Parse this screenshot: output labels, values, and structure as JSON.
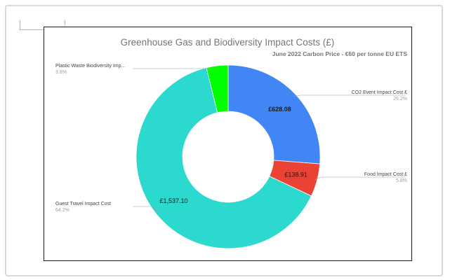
{
  "chart_data": {
    "type": "pie",
    "donut": true,
    "title": "Greenhouse Gas and Biodiversity Impact Costs (£)",
    "subtitle": "June 2022 Carbon Price - €60 per tonne EU ETS",
    "slices": [
      {
        "label": "CO2 Event Impact Cost £",
        "value": 628.08,
        "value_label": "£628.08",
        "percent_label": "26.2%",
        "color": "#4285f4"
      },
      {
        "label": "Food Impact Cost £",
        "value": 138.91,
        "value_label": "£138.91",
        "percent_label": "5.8%",
        "color": "#ea4335"
      },
      {
        "label": "Guest Travel Impact Cost",
        "value": 1537.1,
        "value_label": "£1,537.10",
        "percent_label": "64.2%",
        "color": "#2bd9cf"
      },
      {
        "label": "Plastic Waste Biodiversity Imp...",
        "value": 91.0,
        "value_label": "",
        "percent_label": "3.8%",
        "color": "#00ff00"
      }
    ]
  }
}
